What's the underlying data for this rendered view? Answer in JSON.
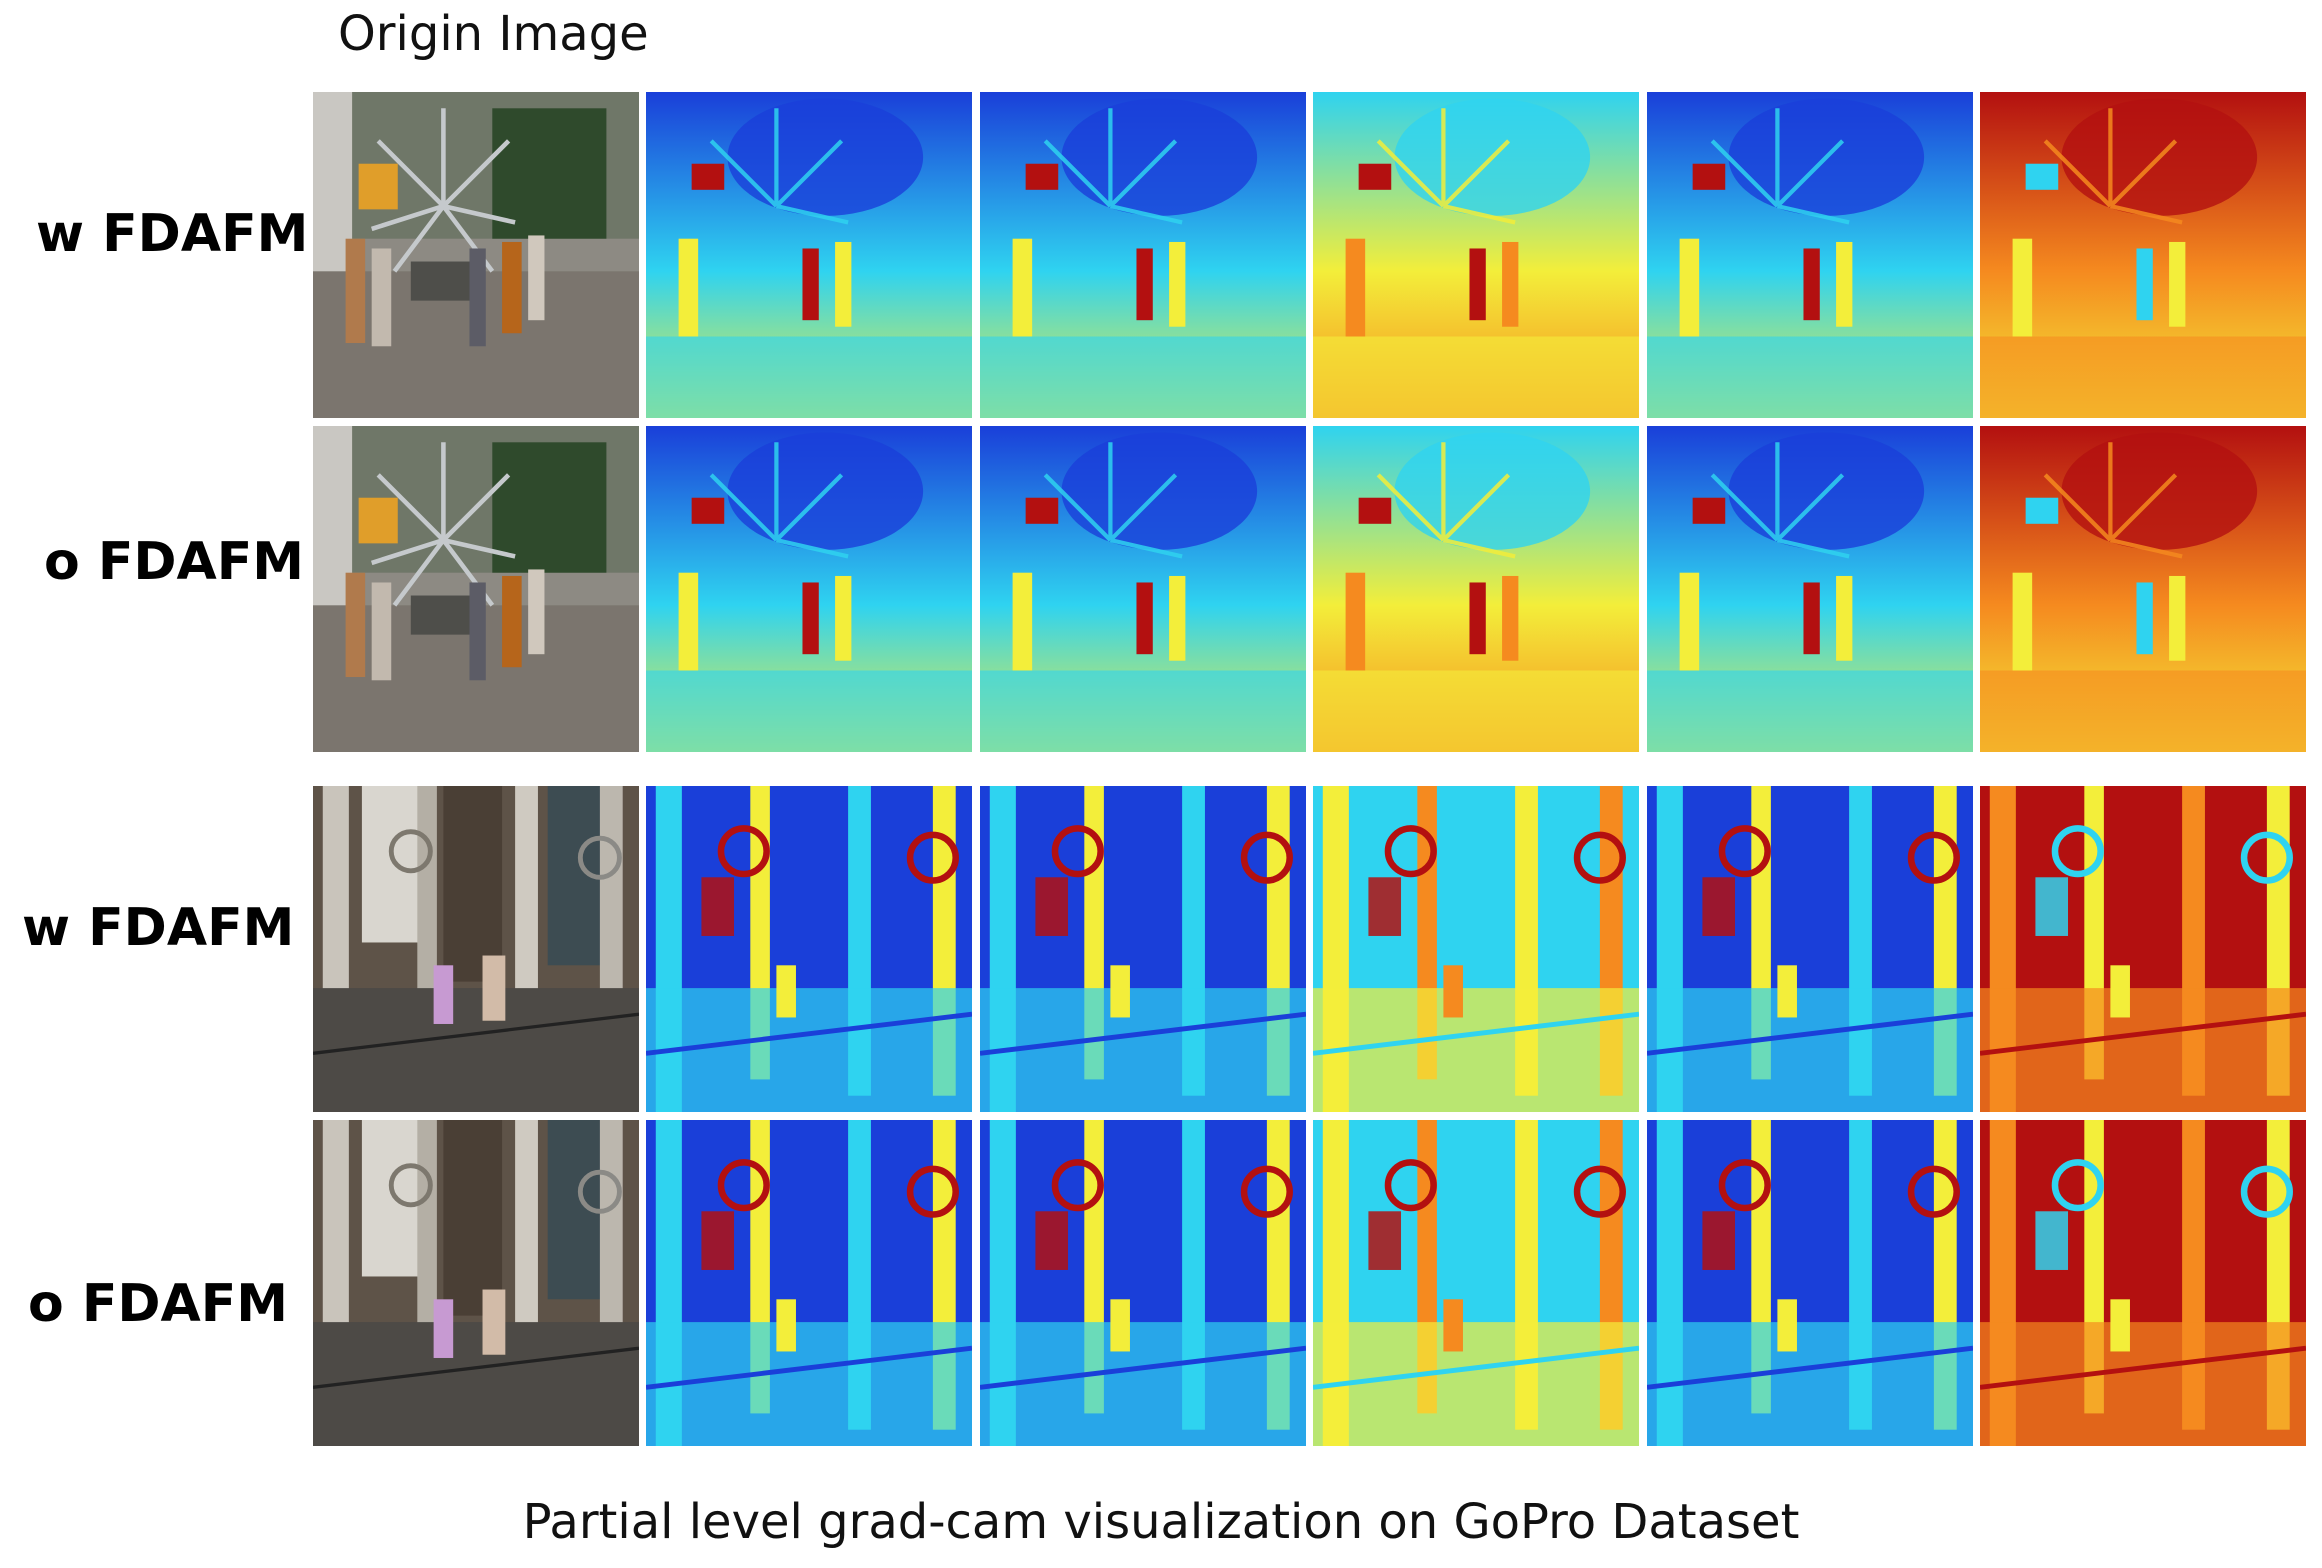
{
  "header": {
    "origin_label": "Origin Image"
  },
  "rows": [
    {
      "label": "w FDAFM",
      "scene": "street"
    },
    {
      "label": "o FDAFM",
      "scene": "street"
    },
    {
      "label": "w FDAFM",
      "scene": "hall"
    },
    {
      "label": "o FDAFM",
      "scene": "hall"
    }
  ],
  "columns": [
    {
      "kind": "photo"
    },
    {
      "kind": "gradcam",
      "map": "cool"
    },
    {
      "kind": "gradcam",
      "map": "cool"
    },
    {
      "kind": "gradcam",
      "map": "warm"
    },
    {
      "kind": "gradcam",
      "map": "cool"
    },
    {
      "kind": "gradcam",
      "map": "hot"
    }
  ],
  "caption": "Partial level grad-cam visualization on GoPro Dataset",
  "colors": {
    "jet_blue": "#1a3fd9",
    "jet_cyan": "#2fd3f0",
    "jet_yellow": "#f3ee3a",
    "jet_orange": "#f58a1f",
    "jet_red": "#b31010"
  }
}
